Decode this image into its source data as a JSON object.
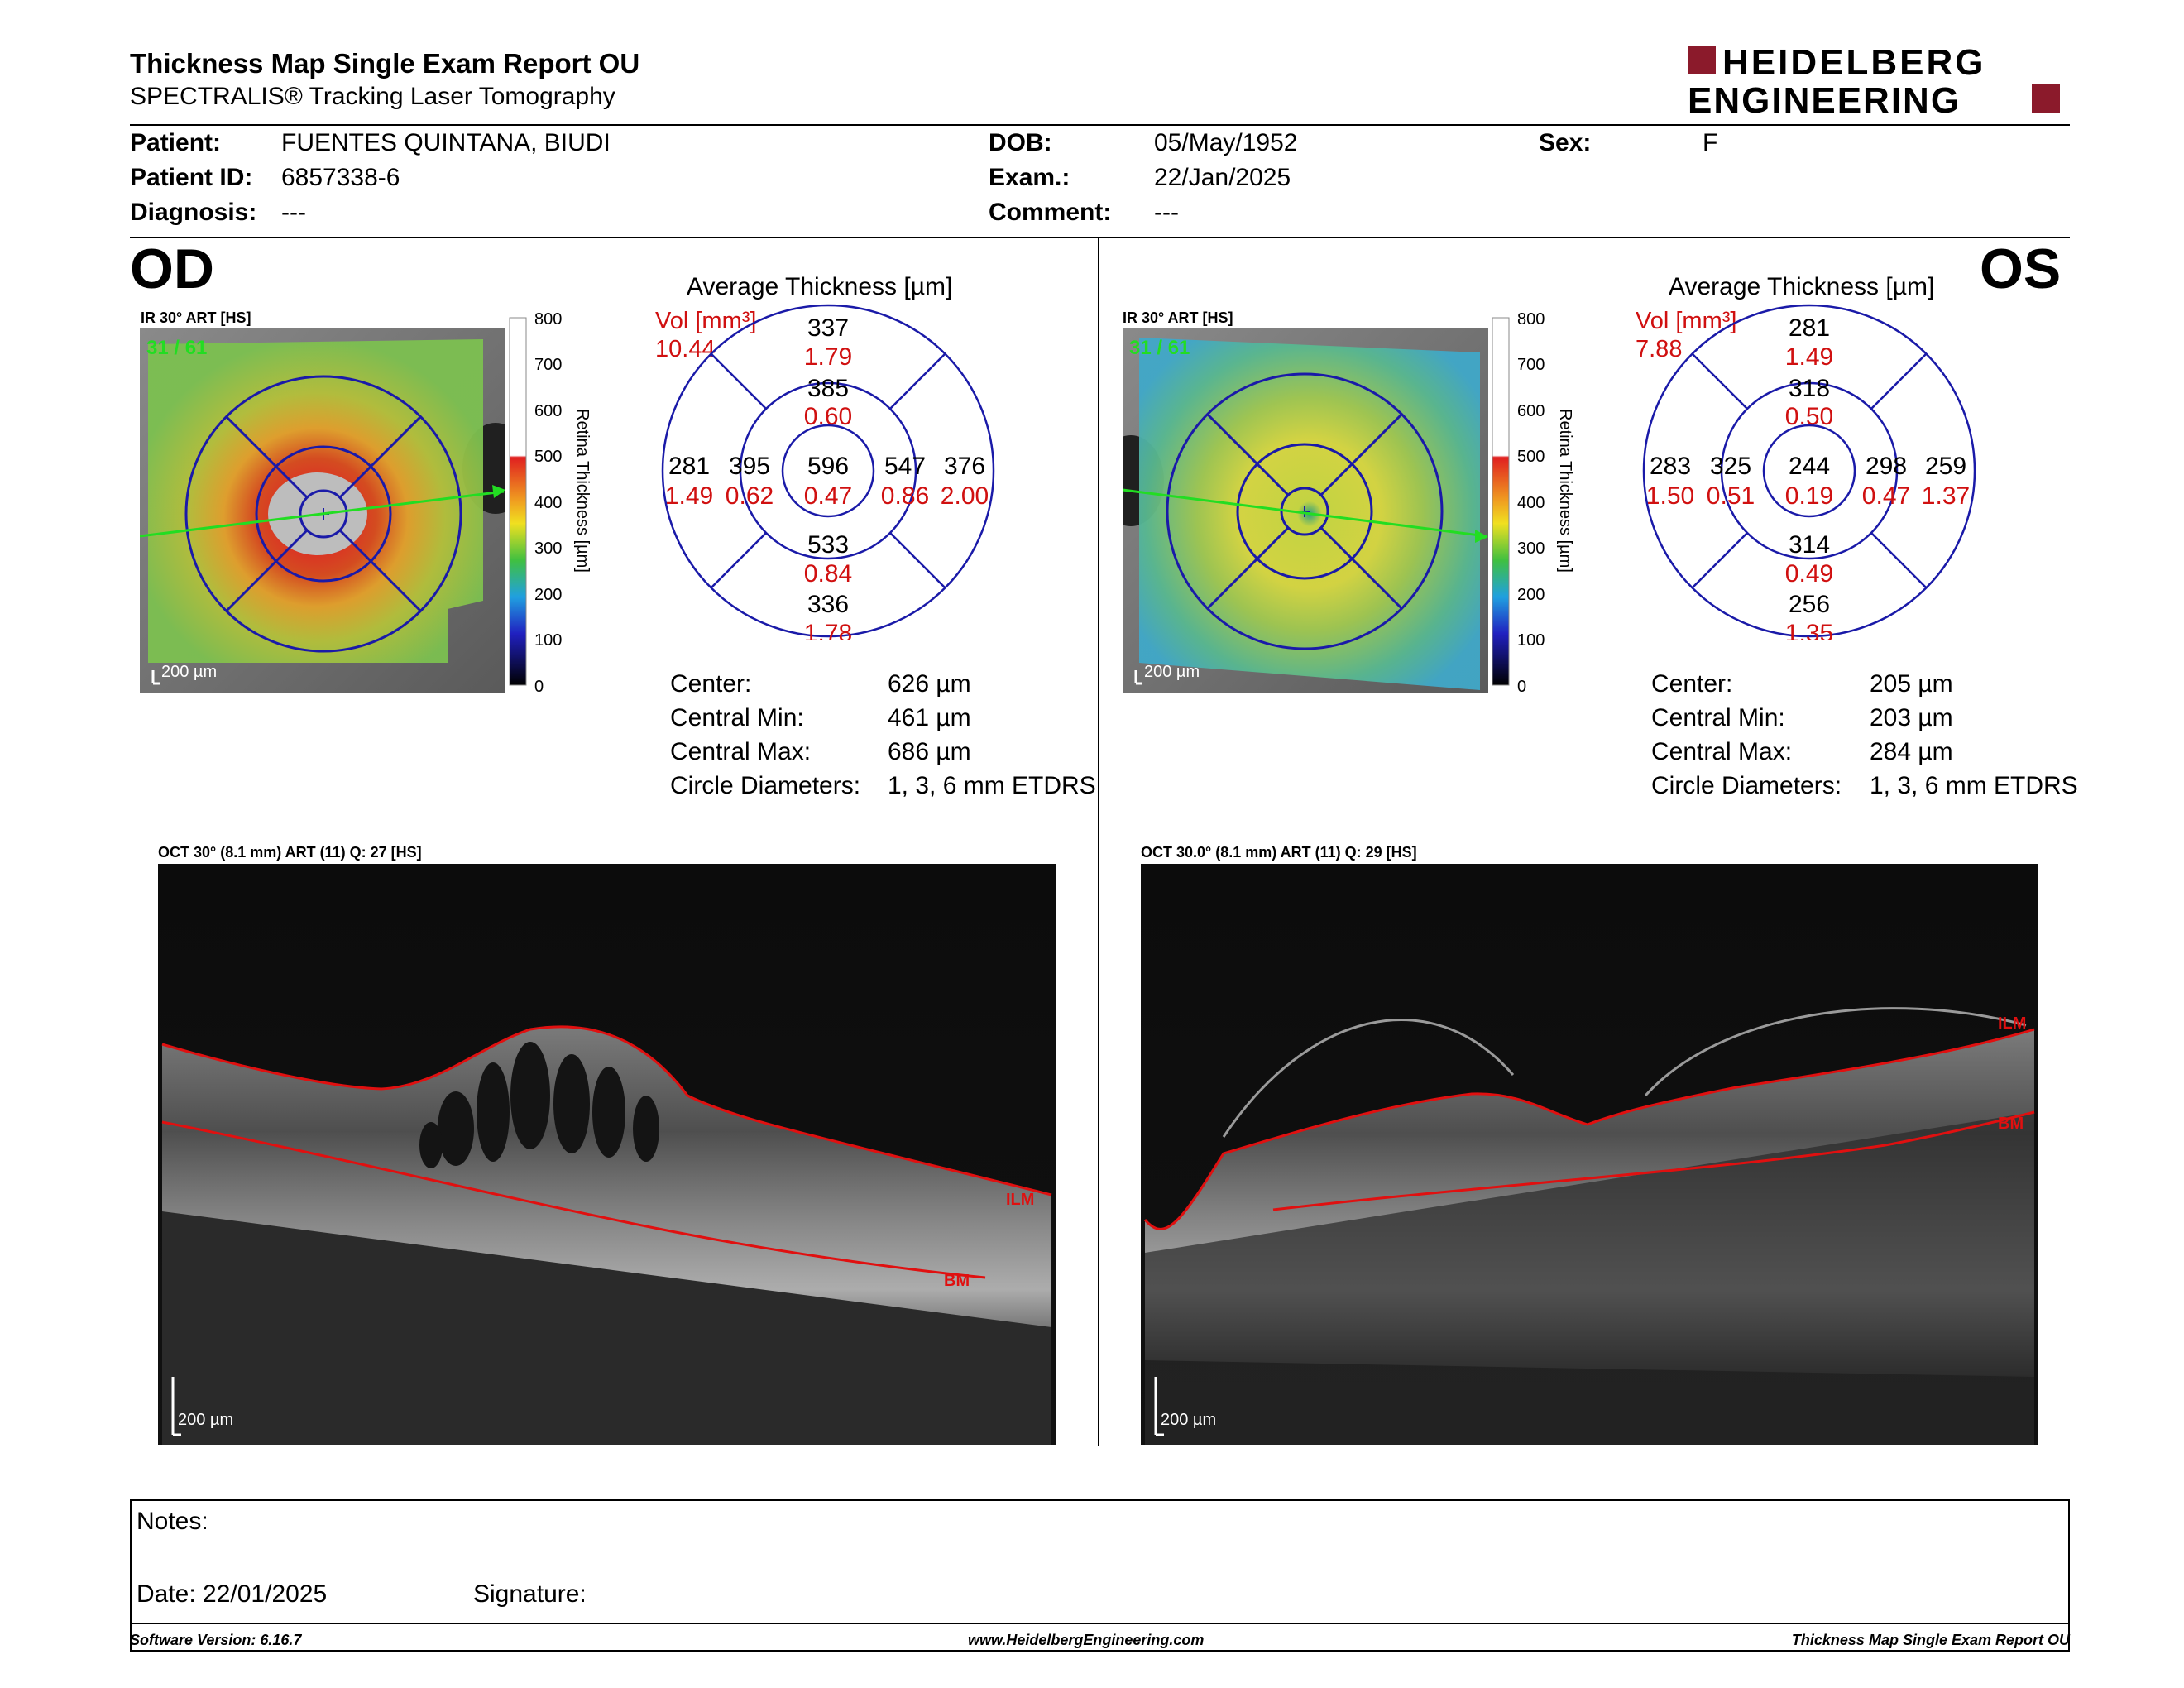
{
  "header": {
    "title": "Thickness Map Single Exam Report OU",
    "subtitle": "SPECTRALIS® Tracking Laser Tomography",
    "logo_line1": "HEIDELBERG",
    "logo_line2": "ENGINEERING",
    "brand_color": "#8b1a2b"
  },
  "patient": {
    "patient_label": "Patient:",
    "patient_value": "FUENTES QUINTANA, BIUDI",
    "id_label": "Patient ID:",
    "id_value": "6857338-6",
    "diagnosis_label": "Diagnosis:",
    "diagnosis_value": "---",
    "dob_label": "DOB:",
    "dob_value": "05/May/1952",
    "exam_label": "Exam.:",
    "exam_value": "22/Jan/2025",
    "comment_label": "Comment:",
    "comment_value": "---",
    "sex_label": "Sex:",
    "sex_value": "F"
  },
  "scale": {
    "ticks": [
      "800",
      "700",
      "600",
      "500",
      "400",
      "300",
      "200",
      "100",
      "0"
    ],
    "label": "Retina Thickness [µm]"
  },
  "od": {
    "eye": "OD",
    "ir_label": "IR 30° ART [HS]",
    "frame": "31 / 61",
    "scalebar": "200 µm",
    "avg_title": "Average Thickness [µm]",
    "vol_label": "Vol [mm³]",
    "vol_value": "10.44",
    "grid": {
      "outer_sup": "337",
      "outer_sup_vol": "1.79",
      "inner_sup": "385",
      "inner_sup_vol": "0.60",
      "outer_left": "281",
      "outer_left_vol": "1.49",
      "inner_left": "395",
      "inner_left_vol": "0.62",
      "center": "596",
      "center_vol": "0.47",
      "inner_right": "547",
      "inner_right_vol": "0.86",
      "outer_right": "376",
      "outer_right_vol": "2.00",
      "inner_inf": "533",
      "inner_inf_vol": "0.84",
      "outer_inf": "336",
      "outer_inf_vol": "1.78"
    },
    "stats": {
      "center_label": "Center:",
      "center_value": "626 µm",
      "min_label": "Central Min:",
      "min_value": "461 µm",
      "max_label": "Central Max:",
      "max_value": "686 µm",
      "diam_label": "Circle Diameters:",
      "diam_value": "1, 3, 6 mm ETDRS"
    },
    "oct_label": "OCT 30° (8.1 mm) ART (11) Q: 27 [HS]",
    "oct_scalebar": "200 µm",
    "ilm": "ILM",
    "bm": "BM"
  },
  "os": {
    "eye": "OS",
    "ir_label": "IR 30° ART [HS]",
    "frame": "31 / 61",
    "scalebar": "200 µm",
    "avg_title": "Average Thickness [µm]",
    "vol_label": "Vol [mm³]",
    "vol_value": "7.88",
    "grid": {
      "outer_sup": "281",
      "outer_sup_vol": "1.49",
      "inner_sup": "318",
      "inner_sup_vol": "0.50",
      "outer_left": "283",
      "outer_left_vol": "1.50",
      "inner_left": "325",
      "inner_left_vol": "0.51",
      "center": "244",
      "center_vol": "0.19",
      "inner_right": "298",
      "inner_right_vol": "0.47",
      "outer_right": "259",
      "outer_right_vol": "1.37",
      "inner_inf": "314",
      "inner_inf_vol": "0.49",
      "outer_inf": "256",
      "outer_inf_vol": "1.35"
    },
    "stats": {
      "center_label": "Center:",
      "center_value": "205 µm",
      "min_label": "Central Min:",
      "min_value": "203 µm",
      "max_label": "Central Max:",
      "max_value": "284 µm",
      "diam_label": "Circle Diameters:",
      "diam_value": "1, 3, 6 mm ETDRS"
    },
    "oct_label": "OCT 30.0° (8.1 mm) ART (11) Q: 29 [HS]",
    "oct_scalebar": "200 µm",
    "ilm": "ILM",
    "bm": "BM"
  },
  "notes": {
    "notes_label": "Notes:",
    "date_label": "Date: 22/01/2025",
    "signature_label": "Signature:"
  },
  "footer": {
    "version": "Software Version: 6.16.7",
    "url": "www.HeidelbergEngineering.com",
    "report": "Thickness Map Single Exam Report OU"
  }
}
